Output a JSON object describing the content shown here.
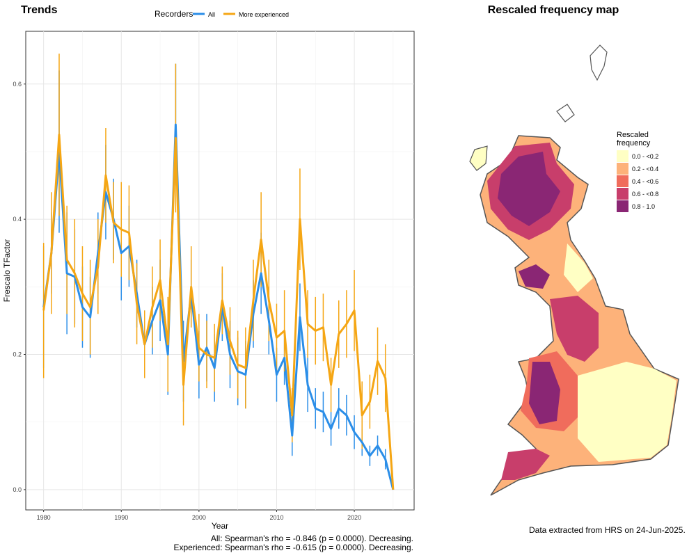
{
  "chart_data": {
    "type": "line",
    "title": "Trends",
    "x_label": "Year",
    "y_label": "Frescalo TFactor",
    "legend_title": "Recorders",
    "legend": "top",
    "grid": true,
    "xlim": [
      1977.7,
      2027.7
    ],
    "ylim": [
      -0.03,
      0.678
    ],
    "xticks": [
      1980,
      1990,
      2000,
      2010,
      2020
    ],
    "minor_xticks": [
      1985,
      1995,
      2005,
      2015,
      2025
    ],
    "yticks": [
      {
        "value": 0,
        "label": "0.0"
      },
      0.2,
      0.4,
      0.6
    ],
    "minor_yticks": [
      0.1,
      0.3,
      0.5
    ],
    "x": [
      1980,
      1981,
      1982,
      1983,
      1984,
      1985,
      1986,
      1987,
      1988,
      1989,
      1990,
      1991,
      1992,
      1993,
      1994,
      1995,
      1996,
      1997,
      1998,
      1999,
      2000,
      2001,
      2002,
      2003,
      2004,
      2005,
      2006,
      2007,
      2008,
      2009,
      2010,
      2011,
      2012,
      2013,
      2014,
      2015,
      2016,
      2017,
      2018,
      2019,
      2020,
      2021,
      2022,
      2023,
      2024,
      2025
    ],
    "series": [
      {
        "name": "All",
        "color": "#2b8ee8",
        "values": [
          0.27,
          0.35,
          0.5,
          0.32,
          0.315,
          0.27,
          0.255,
          0.35,
          0.44,
          0.4,
          0.35,
          0.36,
          0.29,
          0.215,
          0.25,
          0.28,
          0.2,
          0.54,
          0.19,
          0.29,
          0.185,
          0.21,
          0.18,
          0.27,
          0.2,
          0.175,
          0.17,
          0.26,
          0.32,
          0.25,
          0.17,
          0.195,
          0.08,
          0.255,
          0.155,
          0.12,
          0.115,
          0.09,
          0.12,
          0.11,
          0.085,
          0.07,
          0.05,
          0.065,
          0.045,
          0
        ],
        "errors": [
          0.09,
          0.06,
          0.12,
          0.09,
          0.07,
          0.06,
          0.06,
          0.06,
          0.07,
          0.06,
          0.07,
          0.06,
          0.05,
          0.05,
          0.05,
          0.06,
          0.06,
          0.09,
          0.06,
          0.05,
          0.05,
          0.05,
          0.05,
          0.05,
          0.05,
          0.05,
          0.05,
          0.05,
          0.06,
          0.05,
          0.04,
          0.04,
          0.03,
          0.05,
          0.04,
          0.03,
          0.03,
          0.025,
          0.03,
          0.03,
          0.025,
          0.02,
          0.015,
          0.015,
          0.015,
          0
        ]
      },
      {
        "name": "More experienced",
        "color": "#f5a614",
        "values": [
          0.265,
          0.35,
          0.525,
          0.34,
          0.32,
          0.29,
          0.27,
          0.33,
          0.465,
          0.395,
          0.385,
          0.38,
          0.275,
          0.215,
          0.27,
          0.31,
          0.215,
          0.52,
          0.155,
          0.3,
          0.21,
          0.2,
          0.195,
          0.28,
          0.22,
          0.185,
          0.18,
          0.28,
          0.37,
          0.28,
          0.225,
          0.235,
          0.11,
          0.4,
          0.245,
          0.235,
          0.24,
          0.155,
          0.23,
          0.245,
          0.265,
          0.11,
          0.13,
          0.19,
          0.165,
          0
        ],
        "errors": [
          0.1,
          0.09,
          0.12,
          0.08,
          0.08,
          0.07,
          0.07,
          0.07,
          0.07,
          0.06,
          0.07,
          0.07,
          0.06,
          0.05,
          0.06,
          0.06,
          0.07,
          0.11,
          0.06,
          0.06,
          0.05,
          0.05,
          0.05,
          0.05,
          0.05,
          0.05,
          0.06,
          0.06,
          0.07,
          0.06,
          0.05,
          0.06,
          0.04,
          0.075,
          0.05,
          0.05,
          0.05,
          0.04,
          0.05,
          0.05,
          0.06,
          0.05,
          0.04,
          0.05,
          0.05,
          0
        ]
      }
    ],
    "annotations": [
      "All: Spearman's rho = -0.846 (p = 0.0000). Decreasing.",
      "Experienced: Spearman's rho = -0.615 (p = 0.0000). Decreasing."
    ]
  },
  "map": {
    "title": "Rescaled frequency map",
    "legend_title": [
      "Rescaled",
      "frequency"
    ],
    "legend_items": [
      {
        "label": "0.0 - <0.2",
        "color": "#ffffc4"
      },
      {
        "label": "0.2 - <0.4",
        "color": "#fdb27a"
      },
      {
        "label": "0.4 - <0.6",
        "color": "#f06c5c"
      },
      {
        "label": "0.6 - <0.8",
        "color": "#c83e6b"
      },
      {
        "label": "0.8 - 1.0",
        "color": "#8a2674"
      }
    ],
    "footnote": "Data extracted from HRS on 24-Jun-2025."
  }
}
